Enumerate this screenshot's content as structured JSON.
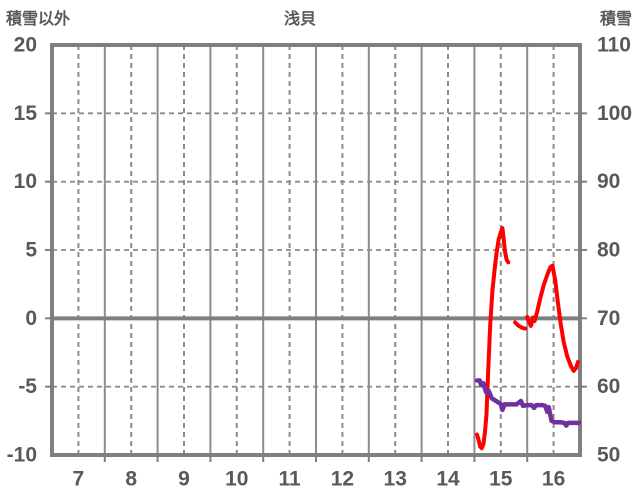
{
  "header": {
    "left_axis_title": "積雪以外",
    "chart_title": "浅貝",
    "right_axis_title": "積雪"
  },
  "chart_data": {
    "type": "line",
    "title": "浅貝",
    "legend": "none",
    "x_axis": {
      "min": 6.5,
      "max": 16.5,
      "tick_positions": [
        7,
        8,
        9,
        10,
        11,
        12,
        13,
        14,
        15,
        16
      ],
      "tick_labels": [
        "7",
        "8",
        "9",
        "10",
        "11",
        "12",
        "13",
        "14",
        "15",
        "16"
      ],
      "solid_gridline_positions": [
        7.5,
        8.5,
        9.5,
        10.5,
        11.5,
        12.5,
        13.5,
        14.5,
        15.5
      ],
      "dashed_gridline_positions": [
        7,
        8,
        9,
        10,
        11,
        12,
        13,
        14,
        15,
        16
      ]
    },
    "left_axis": {
      "title": "積雪以外",
      "min": -10,
      "max": 20,
      "tick_values": [
        20,
        15,
        10,
        5,
        0,
        -5,
        -10
      ],
      "tick_labels": [
        "20",
        "15",
        "10",
        "5",
        "0",
        "-5",
        "-10"
      ],
      "dashed_gridlines": [
        15,
        10,
        5,
        -5
      ],
      "zero_line": 0
    },
    "right_axis": {
      "title": "積雪",
      "min": 50,
      "max": 110,
      "tick_values": [
        110,
        100,
        90,
        80,
        70,
        60,
        50
      ],
      "tick_labels": [
        "110",
        "100",
        "90",
        "80",
        "70",
        "60",
        "50"
      ]
    },
    "series": [
      {
        "name": "積雪以外",
        "axis": "left",
        "color": "#fe0000",
        "line_width": 4,
        "segments": [
          [
            [
              14.55,
              -8.5
            ],
            [
              14.58,
              -8.9
            ],
            [
              14.61,
              -9.4
            ],
            [
              14.64,
              -9.5
            ],
            [
              14.67,
              -9.2
            ],
            [
              14.7,
              -8.3
            ],
            [
              14.73,
              -7.0
            ],
            [
              14.76,
              -4.0
            ],
            [
              14.8,
              -0.5
            ],
            [
              14.84,
              2.0
            ],
            [
              14.88,
              3.5
            ],
            [
              14.92,
              4.8
            ],
            [
              14.96,
              5.8
            ],
            [
              15.0,
              6.3
            ],
            [
              15.03,
              6.6
            ],
            [
              15.05,
              6.0
            ],
            [
              15.08,
              4.9
            ],
            [
              15.11,
              4.3
            ],
            [
              15.14,
              4.1
            ]
          ],
          [
            [
              15.27,
              -0.3
            ],
            [
              15.34,
              -0.55
            ],
            [
              15.41,
              -0.7
            ],
            [
              15.46,
              -0.75
            ]
          ],
          [
            [
              15.5,
              0.1
            ],
            [
              15.54,
              -0.3
            ],
            [
              15.57,
              -0.55
            ],
            [
              15.61,
              0.05
            ],
            [
              15.64,
              -0.2
            ],
            [
              15.69,
              0.5
            ],
            [
              15.75,
              1.5
            ],
            [
              15.81,
              2.4
            ],
            [
              15.88,
              3.2
            ],
            [
              15.94,
              3.75
            ],
            [
              15.98,
              3.85
            ],
            [
              16.03,
              2.8
            ],
            [
              16.08,
              1.2
            ],
            [
              16.13,
              -0.3
            ],
            [
              16.19,
              -1.7
            ],
            [
              16.26,
              -2.8
            ],
            [
              16.33,
              -3.5
            ],
            [
              16.38,
              -3.85
            ],
            [
              16.43,
              -3.6
            ],
            [
              16.46,
              -3.2
            ]
          ]
        ]
      },
      {
        "name": "積雪",
        "axis": "right",
        "color": "#7030a0",
        "line_width": 4.5,
        "segments": [
          [
            [
              14.55,
              60.9
            ],
            [
              14.6,
              60.9
            ],
            [
              14.63,
              60.2
            ],
            [
              14.67,
              60.5
            ],
            [
              14.72,
              59.2
            ],
            [
              14.77,
              59.4
            ],
            [
              14.83,
              58.3
            ],
            [
              14.89,
              58.0
            ],
            [
              14.95,
              57.7
            ],
            [
              15.0,
              57.5
            ],
            [
              15.03,
              56.6
            ],
            [
              15.07,
              57.4
            ],
            [
              15.18,
              57.4
            ],
            [
              15.3,
              57.4
            ],
            [
              15.38,
              57.9
            ],
            [
              15.42,
              57.2
            ],
            [
              15.5,
              57.3
            ],
            [
              15.58,
              57.3
            ],
            [
              15.63,
              56.9
            ],
            [
              15.67,
              57.3
            ],
            [
              15.78,
              57.3
            ],
            [
              15.84,
              57.2
            ],
            [
              15.88,
              56.3
            ],
            [
              15.91,
              57.0
            ],
            [
              15.96,
              55.0
            ],
            [
              16.02,
              54.8
            ],
            [
              16.12,
              54.8
            ],
            [
              16.2,
              54.7
            ],
            [
              16.24,
              54.3
            ],
            [
              16.27,
              54.7
            ],
            [
              16.38,
              54.7
            ],
            [
              16.48,
              54.7
            ]
          ]
        ]
      }
    ],
    "colors": {
      "grid": "#8c8c8c",
      "border": "#7f7f7f",
      "zero_line": "#7f7f7f",
      "labels": "#595959",
      "background": "#ffffff"
    }
  }
}
